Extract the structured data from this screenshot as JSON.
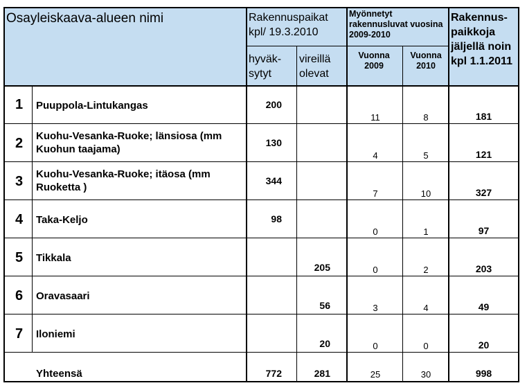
{
  "header": {
    "area_name": "Osayleiskaava-alueen nimi",
    "plots_title": "Rakennuspaikat kpl/ 19.3.2010",
    "approved": "hyväk-sytyt",
    "pending": "vireillä olevat",
    "permits_title": "Myönnetyt rakennusluvat vuosina 2009-2010",
    "year2009": "Vuonna 2009",
    "year2010": "Vuonna 2010",
    "remaining": "Rakennus-paikkoja jäljellä noin kpl 1.1.2011"
  },
  "rows": [
    {
      "no": "1",
      "name": "Puuppola-Lintukangas",
      "approved": "200",
      "pending": "",
      "y2009": "11",
      "y2010": "8",
      "remaining": "181"
    },
    {
      "no": "2",
      "name": "Kuohu-Vesanka-Ruoke; länsiosa (mm Kuohun taajama)",
      "approved": "130",
      "pending": "",
      "y2009": "4",
      "y2010": "5",
      "remaining": "121"
    },
    {
      "no": "3",
      "name": "Kuohu-Vesanka-Ruoke; itäosa (mm Ruoketta )",
      "approved": "344",
      "pending": "",
      "y2009": "7",
      "y2010": "10",
      "remaining": "327"
    },
    {
      "no": "4",
      "name": "Taka-Keljo",
      "approved": "98",
      "pending": "",
      "y2009": "0",
      "y2010": "1",
      "remaining": "97"
    },
    {
      "no": "5",
      "name": "Tikkala",
      "approved": "",
      "pending": "205",
      "y2009": "0",
      "y2010": "2",
      "remaining": "203"
    },
    {
      "no": "6",
      "name": "Oravasaari",
      "approved": "",
      "pending": "56",
      "y2009": "3",
      "y2010": "4",
      "remaining": "49"
    },
    {
      "no": "7",
      "name": "Iloniemi",
      "approved": "",
      "pending": "20",
      "y2009": "0",
      "y2010": "0",
      "remaining": "20"
    }
  ],
  "total": {
    "label": "Yhteensä",
    "approved": "772",
    "pending": "281",
    "y2009": "25",
    "y2010": "30",
    "remaining": "998"
  }
}
